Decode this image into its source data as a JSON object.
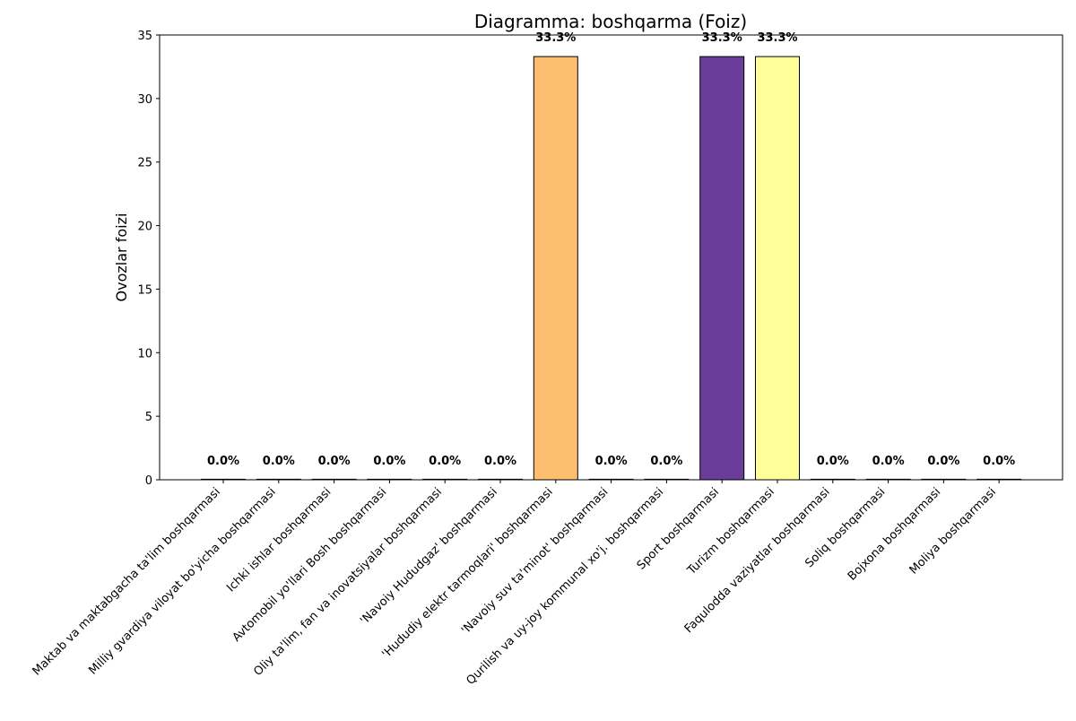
{
  "chart_data": {
    "type": "bar",
    "title": "Diagramma: boshqarma (Foiz)",
    "xlabel": "",
    "ylabel": "Ovozlar foizi",
    "ylim": [
      0,
      35
    ],
    "yticks": [
      0,
      5,
      10,
      15,
      20,
      25,
      30,
      35
    ],
    "grid": false,
    "categories": [
      "Maktab va maktabgacha ta'lim boshqarmasi",
      "Milliy gvardiya viloyat bo'yicha boshqarmasi",
      "Ichki ishlar boshqarmasi",
      "Avtomobil yo'llari Bosh boshqarmasi",
      "Oliy ta'lim, fan va inovatsiyalar boshqarmasi",
      "'Navoiy Hududgaz' boshqarmasi",
      "'Hududiy elektr tarmoqlari' boshqarmasi",
      "'Navoiy suv ta'minot' boshqarmasi",
      "Qurilish va uy-joy kommunal xo'j. boshqarmasi",
      "Sport boshqarmasi",
      "Turizm boshqarmasi",
      "Faqulodda vaziyatlar boshqarmasi",
      "Soliq boshqarmasi",
      "Bojxona boshqarmasi",
      "Moliya boshqarmasi"
    ],
    "values": [
      0,
      0,
      0,
      0,
      0,
      0,
      33.3,
      0,
      0,
      33.3,
      33.3,
      0,
      0,
      0,
      0
    ],
    "value_labels": [
      "0.0%",
      "0.0%",
      "0.0%",
      "0.0%",
      "0.0%",
      "0.0%",
      "33.3%",
      "0.0%",
      "0.0%",
      "33.3%",
      "33.3%",
      "0.0%",
      "0.0%",
      "0.0%",
      "0.0%"
    ],
    "bar_colors": [
      "#0d0887",
      "#2f0596",
      "#5302a3",
      "#7201a8",
      "#8f0da4",
      "#aa2395",
      "#fdbf6f",
      "#d5536f",
      "#e3685f",
      "#6a3d9a",
      "#ffff99",
      "#fca636",
      "#fdc328",
      "#f7e225",
      "#f0f921"
    ]
  }
}
